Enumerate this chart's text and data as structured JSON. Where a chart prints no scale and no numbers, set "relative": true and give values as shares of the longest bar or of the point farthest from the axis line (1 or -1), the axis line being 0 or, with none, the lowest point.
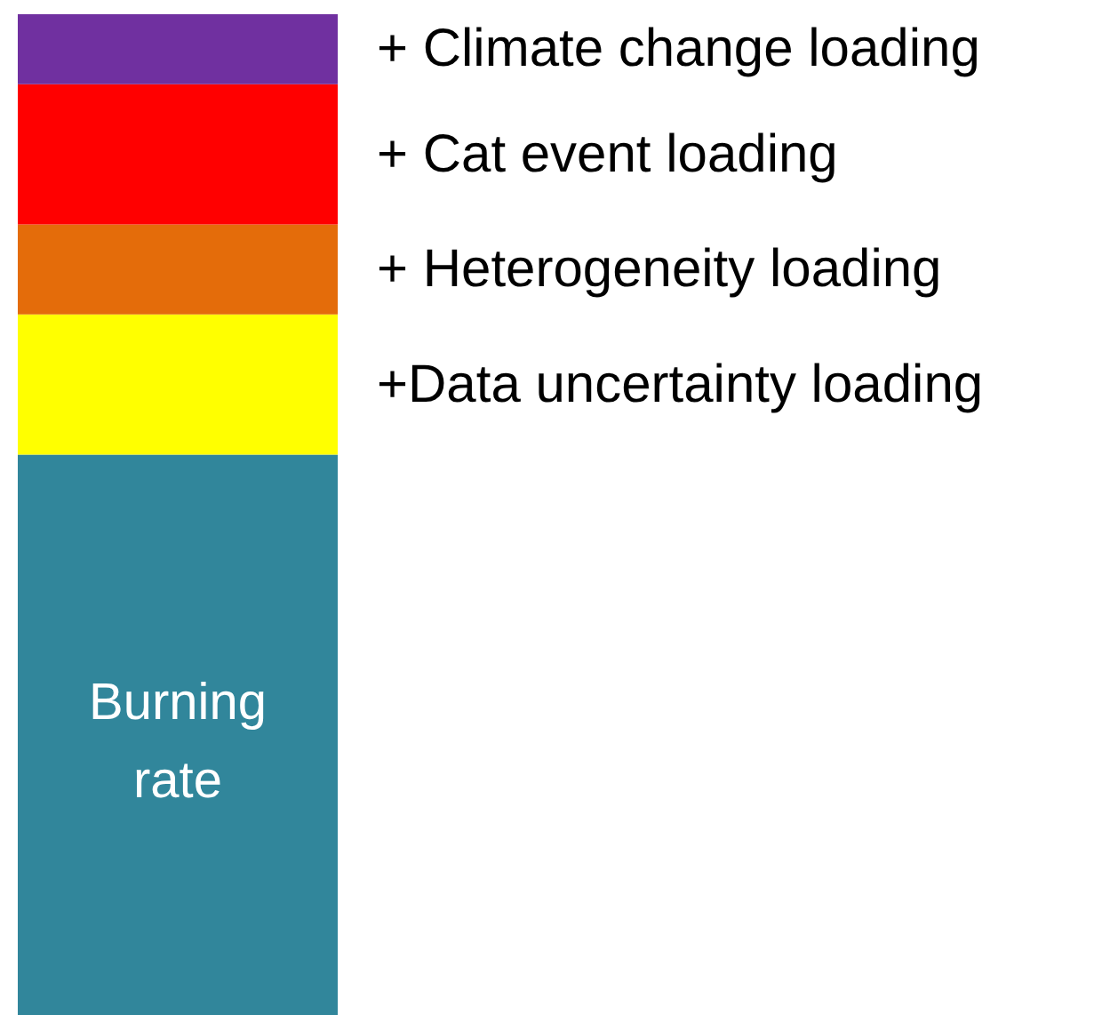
{
  "chart_data": {
    "type": "bar",
    "stacked": true,
    "relative": true,
    "categories": [
      null
    ],
    "series": [
      {
        "name": "Burning rate",
        "color": "#31869b",
        "values": [
          0.56
        ]
      },
      {
        "name": "+Data uncertainty loading",
        "color": "#ffff00",
        "values": [
          0.14
        ]
      },
      {
        "name": "+ Heterogeneity loading",
        "color": "#e46c0a",
        "values": [
          0.09
        ]
      },
      {
        "name": "+ Cat event loading",
        "color": "#ff0000",
        "values": [
          0.14
        ]
      },
      {
        "name": "+ Climate change loading",
        "color": "#7030a0",
        "values": [
          0.07
        ]
      }
    ]
  }
}
